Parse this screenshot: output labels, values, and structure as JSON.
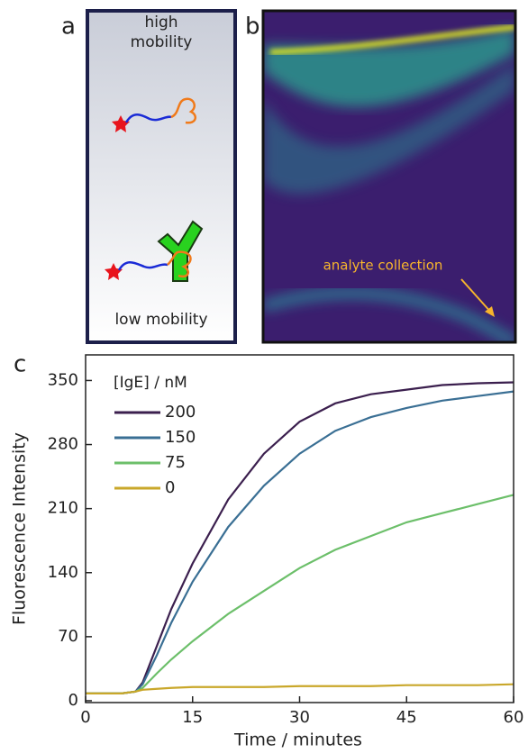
{
  "panels": {
    "a": {
      "label": "a",
      "top_text": "high mobility",
      "bottom_text": "low mobility"
    },
    "b": {
      "label": "b",
      "annotation": "analyte collection"
    },
    "c": {
      "label": "c"
    }
  },
  "chart_data": {
    "type": "line",
    "x_label": "Time / minutes",
    "y_label": "Fluorescence Intensity",
    "legend_title": "[IgE] / nM",
    "legend": "upper left",
    "x": [
      0,
      5,
      7,
      8,
      10,
      12,
      15,
      20,
      25,
      30,
      35,
      40,
      45,
      50,
      55,
      60
    ],
    "series": [
      {
        "name": "200",
        "color": "#3b1f4e",
        "values": [
          8,
          8,
          10,
          20,
          60,
          100,
          150,
          220,
          270,
          305,
          325,
          335,
          340,
          345,
          347,
          348
        ]
      },
      {
        "name": "150",
        "color": "#3a6f94",
        "values": [
          8,
          8,
          10,
          18,
          50,
          85,
          130,
          190,
          235,
          270,
          295,
          310,
          320,
          328,
          333,
          338
        ]
      },
      {
        "name": "75",
        "color": "#6cbf6a",
        "values": [
          8,
          8,
          10,
          14,
          30,
          45,
          65,
          95,
          120,
          145,
          165,
          180,
          195,
          205,
          215,
          225
        ]
      },
      {
        "name": "0",
        "color": "#c9a72a",
        "values": [
          8,
          8,
          10,
          12,
          13,
          14,
          15,
          15,
          15,
          16,
          16,
          16,
          17,
          17,
          17,
          18
        ]
      }
    ],
    "xlim": [
      0,
      60
    ],
    "ylim": [
      -2,
      378
    ],
    "xticks": [
      0,
      15,
      30,
      45,
      60
    ],
    "yticks": [
      0,
      70,
      140,
      210,
      280,
      350
    ]
  }
}
